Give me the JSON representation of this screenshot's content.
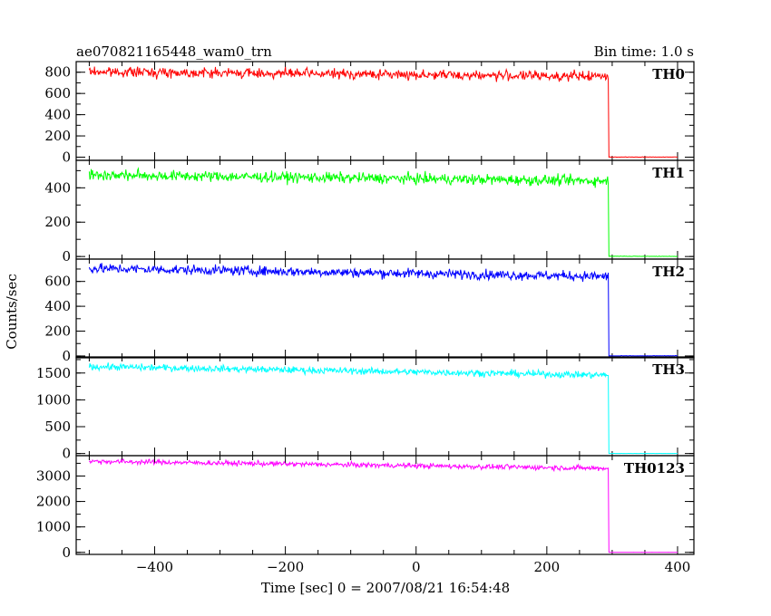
{
  "header": {
    "title": "ae070821165448_wam0_trn",
    "bin_time": "Bin time: 1.0 s"
  },
  "chart_data": {
    "type": "line",
    "title": "ae070821165448_wam0_trn",
    "bin_time": "Bin time: 1.0 s",
    "xlabel": "Time [sec] 0 = 2007/08/21 16:54:48",
    "ylabel": "Counts/sec",
    "xlim": [
      -520,
      425
    ],
    "x_ticks": [
      -400,
      -200,
      0,
      200,
      400
    ],
    "x_range_data": [
      -500,
      400
    ],
    "step_time": 295,
    "noise_seed": 7,
    "grid": false,
    "panels": [
      {
        "name": "TH0",
        "color": "#ff0000",
        "ylim": [
          -30,
          900
        ],
        "y_ticks": [
          0,
          200,
          400,
          600,
          800
        ],
        "level_start": 805,
        "level_end": 760,
        "noise": 32,
        "after_level": 0
      },
      {
        "name": "TH1",
        "color": "#00ff00",
        "ylim": [
          -15,
          560
        ],
        "y_ticks": [
          0,
          200,
          400
        ],
        "level_start": 475,
        "level_end": 440,
        "noise": 22,
        "after_level": 0
      },
      {
        "name": "TH2",
        "color": "#0000ff",
        "ylim": [
          -15,
          780
        ],
        "y_ticks": [
          0,
          200,
          400,
          600
        ],
        "level_start": 705,
        "level_end": 640,
        "noise": 28,
        "after_level": 0
      },
      {
        "name": "TH3",
        "color": "#00ffff",
        "ylim": [
          -40,
          1800
        ],
        "y_ticks": [
          0,
          500,
          1000,
          1500
        ],
        "level_start": 1620,
        "level_end": 1460,
        "noise": 45,
        "after_level": 0
      },
      {
        "name": "TH0123",
        "color": "#ff00ff",
        "ylim": [
          -80,
          3800
        ],
        "y_ticks": [
          0,
          1000,
          2000,
          3000
        ],
        "level_start": 3580,
        "level_end": 3300,
        "noise": 70,
        "after_level": 0
      }
    ]
  }
}
